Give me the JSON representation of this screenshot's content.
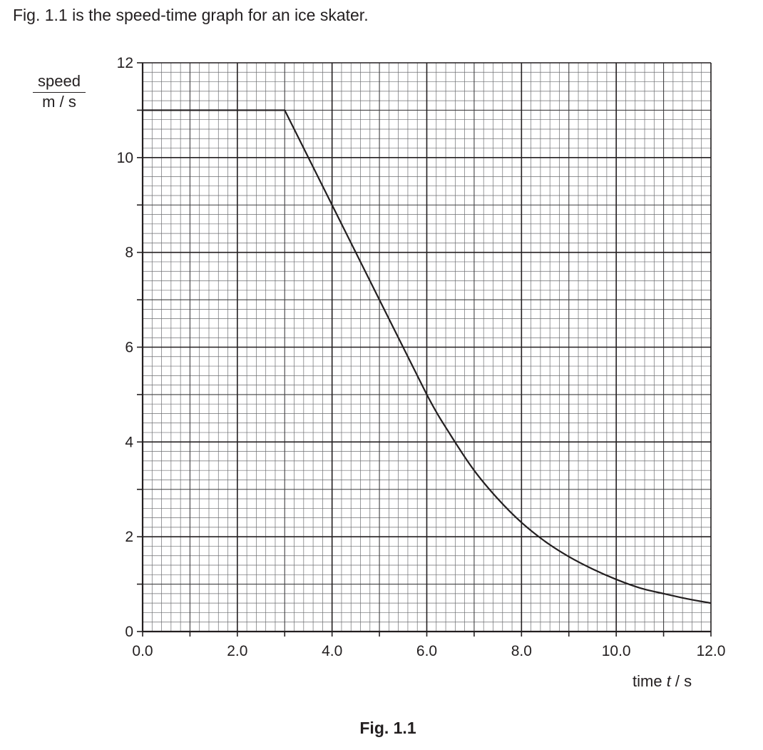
{
  "intro": "Fig. 1.1 is the speed-time graph for an ice skater.",
  "caption": "Fig. 1.1",
  "chart_data": {
    "type": "line",
    "title": "",
    "ylabel": {
      "numerator": "speed",
      "denominator": "m / s"
    },
    "xlabel": {
      "text": "time ",
      "symbol": "t",
      "unit": " / s"
    },
    "xlim": [
      0,
      12
    ],
    "ylim": [
      0,
      12
    ],
    "grid": true,
    "x_ticks": [
      {
        "value": 0,
        "label": "0.0"
      },
      {
        "value": 2,
        "label": "2.0"
      },
      {
        "value": 4,
        "label": "4.0"
      },
      {
        "value": 6,
        "label": "6.0"
      },
      {
        "value": 8,
        "label": "8.0"
      },
      {
        "value": 10,
        "label": "10.0"
      },
      {
        "value": 12,
        "label": "12.0"
      }
    ],
    "y_ticks": [
      {
        "value": 0,
        "label": "0"
      },
      {
        "value": 2,
        "label": "2"
      },
      {
        "value": 4,
        "label": "4"
      },
      {
        "value": 6,
        "label": "6"
      },
      {
        "value": 8,
        "label": "8"
      },
      {
        "value": 10,
        "label": "10"
      },
      {
        "value": 12,
        "label": "12"
      }
    ],
    "series": [
      {
        "color": "#231f20",
        "points": [
          [
            0,
            11
          ],
          [
            3,
            11
          ],
          [
            4,
            9
          ],
          [
            5,
            7
          ],
          [
            6,
            5
          ],
          [
            6.5,
            4.15
          ],
          [
            7,
            3.4
          ],
          [
            7.5,
            2.8
          ],
          [
            8,
            2.3
          ],
          [
            8.5,
            1.9
          ],
          [
            9,
            1.58
          ],
          [
            9.5,
            1.32
          ],
          [
            10,
            1.1
          ],
          [
            10.5,
            0.92
          ],
          [
            11,
            0.8
          ],
          [
            11.5,
            0.69
          ],
          [
            12,
            0.6
          ]
        ]
      }
    ]
  }
}
